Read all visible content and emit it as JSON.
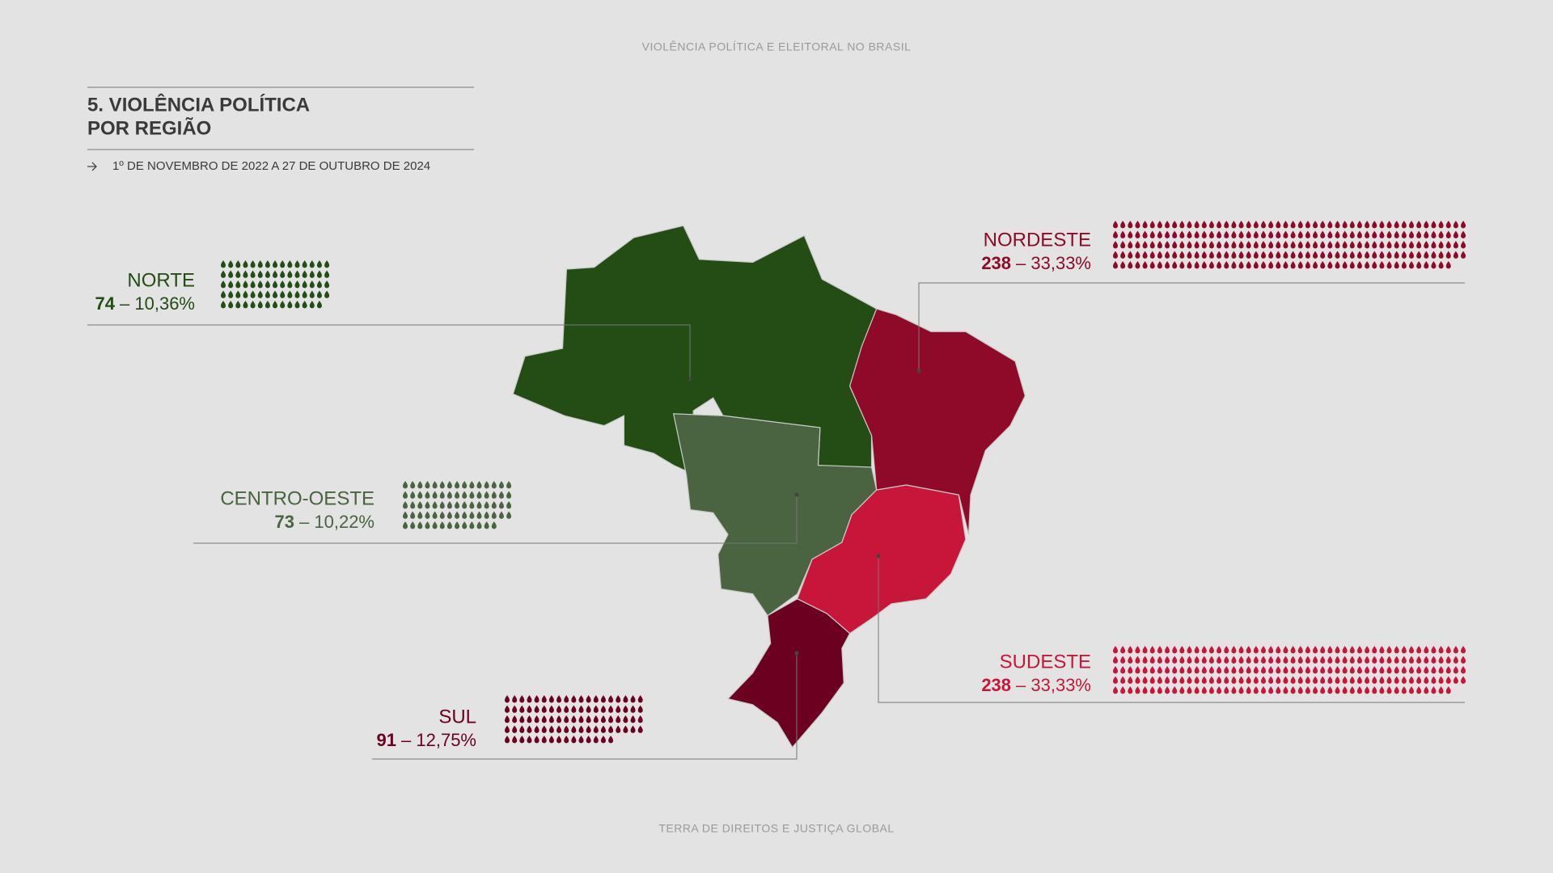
{
  "header": "VIOLÊNCIA POLÍTICA E ELEITORAL NO BRASIL",
  "title": [
    "5. VIOLÊNCIA POLÍTICA",
    "POR REGIÃO"
  ],
  "period": "1º DE NOVEMBRO DE 2022 A 27 DE OUTUBRO DE 2024",
  "regions": [
    {
      "name": "NORTE",
      "count": 74,
      "share": "– 10,36%",
      "color": "#234d14"
    },
    {
      "name": "CENTRO-OESTE",
      "count": 73,
      "share": "– 10,22%",
      "color": "#4a6340"
    },
    {
      "name": "SUL",
      "count": 91,
      "share": "– 12,75%",
      "color": "#6b0020"
    },
    {
      "name": "NORDESTE",
      "count": 238,
      "share": "– 33,33%",
      "color": "#8f0a28"
    },
    {
      "name": "SUDESTE",
      "count": 238,
      "share": "– 33,33%",
      "color": "#c8163a"
    }
  ],
  "footer": "TERRA DE DIREITOS E JUSTIÇA GLOBAL"
}
